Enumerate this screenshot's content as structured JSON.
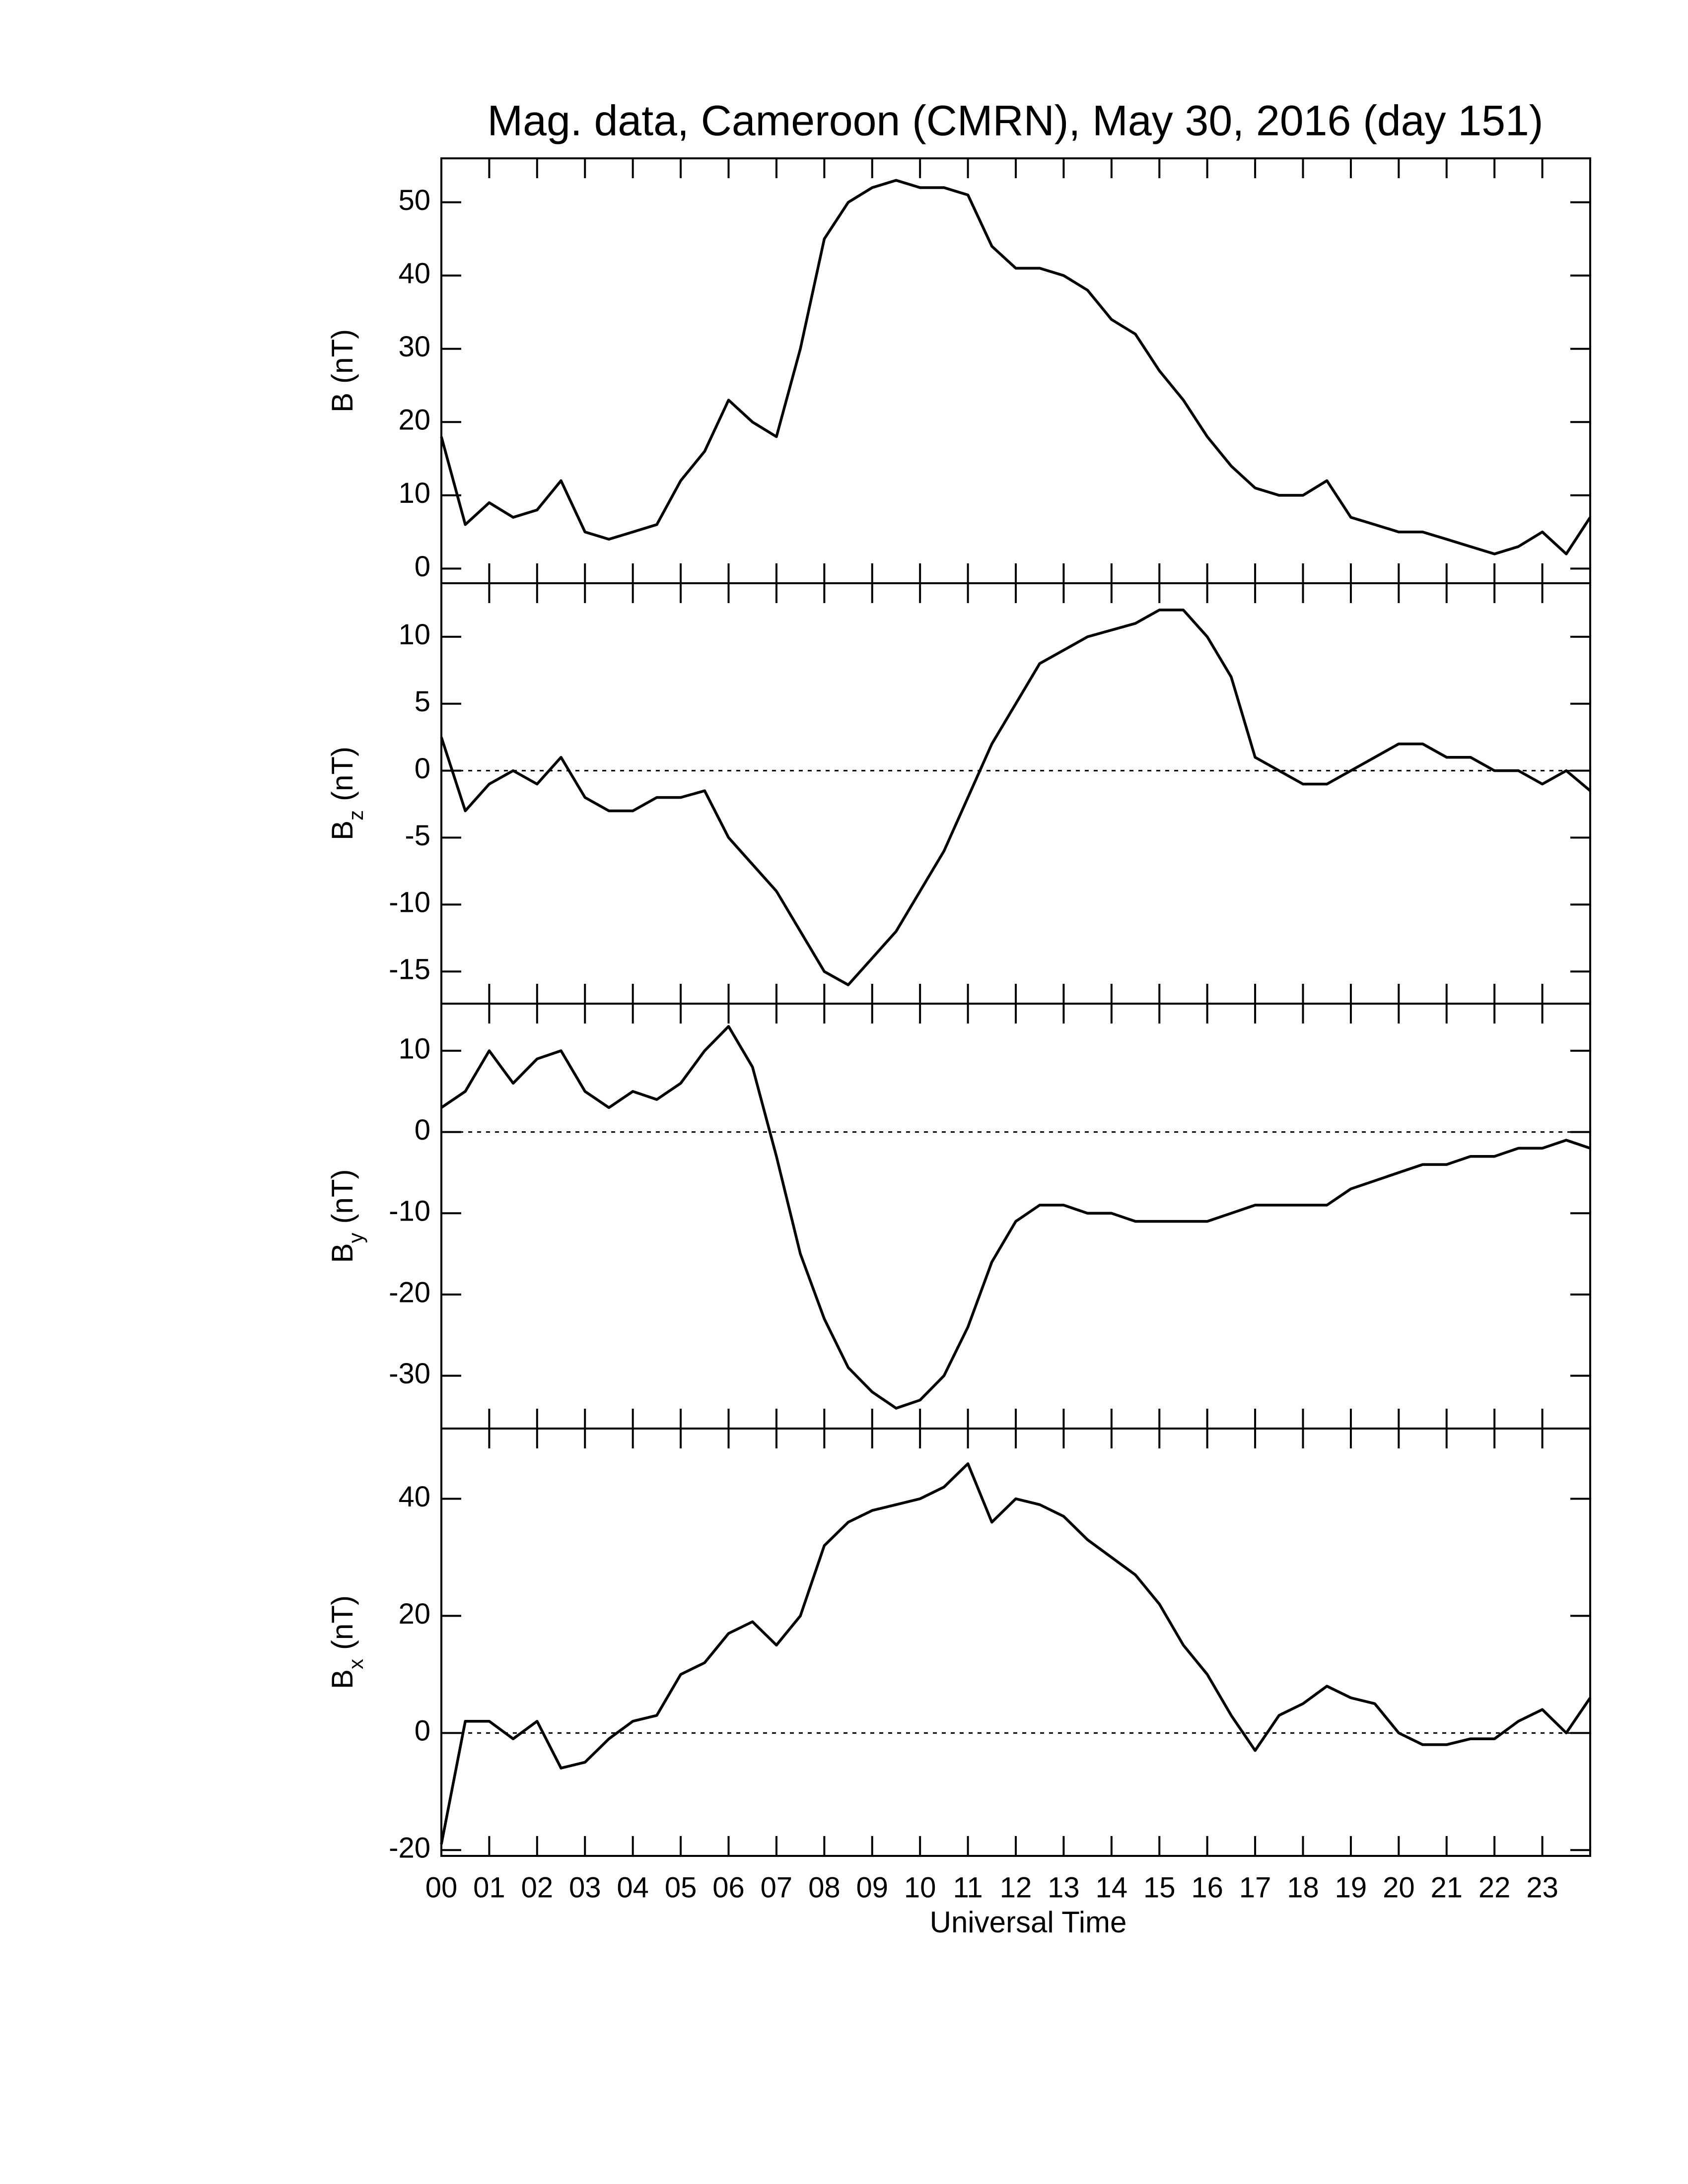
{
  "chart_data": [
    {
      "type": "line",
      "title": "Mag. data, Cameroon (CMRN), May 30, 2016 (day 151)",
      "ylabel": {
        "base": "B",
        "unit": "(nT)"
      },
      "ylim": [
        -2,
        56
      ],
      "yticks": [
        0,
        10,
        20,
        30,
        40,
        50
      ],
      "x": [
        0,
        0.5,
        1,
        1.5,
        2,
        2.5,
        3,
        3.5,
        4,
        4.5,
        5,
        5.5,
        6,
        6.5,
        7,
        7.5,
        8,
        8.5,
        9,
        9.5,
        10,
        10.5,
        11,
        11.5,
        12,
        12.5,
        13,
        13.5,
        14,
        14.5,
        15,
        15.5,
        16,
        16.5,
        17,
        17.5,
        18,
        18.5,
        19,
        19.5,
        20,
        20.5,
        21,
        21.5,
        22,
        22.5,
        23,
        23.5,
        24
      ],
      "series": [
        {
          "color": "#000000",
          "values": [
            18,
            6,
            9,
            7,
            8,
            12,
            5,
            4,
            5,
            6,
            12,
            16,
            23,
            20,
            18,
            30,
            45,
            50,
            52,
            53,
            52,
            52,
            51,
            44,
            41,
            41,
            40,
            38,
            34,
            32,
            27,
            23,
            18,
            14,
            11,
            10,
            10,
            12,
            7,
            6,
            5,
            5,
            4,
            3,
            2,
            3,
            5,
            2,
            7
          ]
        }
      ]
    },
    {
      "type": "line",
      "ylabel": {
        "base": "B",
        "sub": "z",
        "unit": "(nT)"
      },
      "ylim": [
        -17.4,
        14
      ],
      "yticks": [
        -15,
        -10,
        -5,
        0,
        5,
        10
      ],
      "x": [
        0,
        0.5,
        1,
        1.5,
        2,
        2.5,
        3,
        3.5,
        4,
        4.5,
        5,
        5.5,
        6,
        6.5,
        7,
        7.5,
        8,
        8.5,
        9,
        9.5,
        10,
        10.5,
        11,
        11.5,
        12,
        12.5,
        13,
        13.5,
        14,
        14.5,
        15,
        15.5,
        16,
        16.5,
        17,
        17.5,
        18,
        18.5,
        19,
        19.5,
        20,
        20.5,
        21,
        21.5,
        22,
        22.5,
        23,
        23.5,
        24
      ],
      "series": [
        {
          "color": "#000000",
          "values": [
            2.5,
            -3,
            -1,
            0,
            -1,
            1,
            -2,
            -3,
            -3,
            -2,
            -2,
            -1.5,
            -5,
            -7,
            -9,
            -12,
            -15,
            -16,
            -14,
            -12,
            -9,
            -6,
            -2,
            2,
            5,
            8,
            9,
            10,
            10.5,
            11,
            12,
            12,
            10,
            7,
            1,
            0,
            -1,
            -1,
            0,
            1,
            2,
            2,
            1,
            1,
            0,
            0,
            -1,
            0,
            -1.5
          ]
        }
      ]
    },
    {
      "type": "line",
      "ylabel": {
        "base": "B",
        "sub": "y",
        "unit": "(nT)"
      },
      "ylim": [
        -36.5,
        15.8
      ],
      "yticks": [
        -30,
        -20,
        -10,
        0,
        10
      ],
      "x": [
        0,
        0.5,
        1,
        1.5,
        2,
        2.5,
        3,
        3.5,
        4,
        4.5,
        5,
        5.5,
        6,
        6.5,
        7,
        7.5,
        8,
        8.5,
        9,
        9.5,
        10,
        10.5,
        11,
        11.5,
        12,
        12.5,
        13,
        13.5,
        14,
        14.5,
        15,
        15.5,
        16,
        16.5,
        17,
        17.5,
        18,
        18.5,
        19,
        19.5,
        20,
        20.5,
        21,
        21.5,
        22,
        22.5,
        23,
        23.5,
        24
      ],
      "series": [
        {
          "color": "#000000",
          "values": [
            3,
            5,
            10,
            6,
            9,
            10,
            5,
            3,
            5,
            4,
            6,
            10,
            13,
            8,
            -3,
            -15,
            -23,
            -29,
            -32,
            -34,
            -33,
            -30,
            -24,
            -16,
            -11,
            -9,
            -9,
            -10,
            -10,
            -11,
            -11,
            -11,
            -11,
            -10,
            -9,
            -9,
            -9,
            -9,
            -7,
            -6,
            -5,
            -4,
            -4,
            -3,
            -3,
            -2,
            -2,
            -1,
            -2
          ]
        }
      ]
    },
    {
      "type": "line",
      "ylabel": {
        "base": "B",
        "sub": "x",
        "unit": "(nT)"
      },
      "xlabel": "Universal Time",
      "ylim": [
        -21,
        52
      ],
      "yticks": [
        -20,
        0,
        20,
        40
      ],
      "xlim": [
        0,
        24
      ],
      "xticks": [
        {
          "value": 0,
          "label": "00"
        },
        {
          "value": 1,
          "label": "01"
        },
        {
          "value": 2,
          "label": "02"
        },
        {
          "value": 3,
          "label": "03"
        },
        {
          "value": 4,
          "label": "04"
        },
        {
          "value": 5,
          "label": "05"
        },
        {
          "value": 6,
          "label": "06"
        },
        {
          "value": 7,
          "label": "07"
        },
        {
          "value": 8,
          "label": "08"
        },
        {
          "value": 9,
          "label": "09"
        },
        10,
        11,
        12,
        13,
        14,
        15,
        16,
        17,
        18,
        19,
        20,
        21,
        22,
        23
      ],
      "x": [
        0,
        0.5,
        1,
        1.5,
        2,
        2.5,
        3,
        3.5,
        4,
        4.5,
        5,
        5.5,
        6,
        6.5,
        7,
        7.5,
        8,
        8.5,
        9,
        9.5,
        10,
        10.5,
        11,
        11.5,
        12,
        12.5,
        13,
        13.5,
        14,
        14.5,
        15,
        15.5,
        16,
        16.5,
        17,
        17.5,
        18,
        18.5,
        19,
        19.5,
        20,
        20.5,
        21,
        21.5,
        22,
        22.5,
        23,
        23.5,
        24
      ],
      "series": [
        {
          "color": "#000000",
          "values": [
            -19,
            2,
            2,
            -1,
            2,
            -6,
            -5,
            -1,
            2,
            3,
            10,
            12,
            17,
            19,
            15,
            20,
            32,
            36,
            38,
            39,
            40,
            42,
            46,
            36,
            40,
            39,
            37,
            33,
            30,
            27,
            22,
            15,
            10,
            3,
            -3,
            3,
            5,
            8,
            6,
            5,
            0,
            -2,
            -2,
            -1,
            -1,
            2,
            4,
            0,
            6
          ]
        }
      ]
    }
  ]
}
